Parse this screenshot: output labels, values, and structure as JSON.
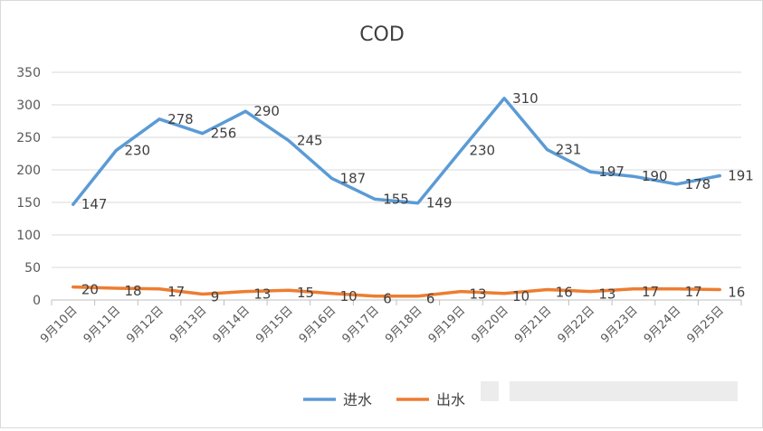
{
  "chart_data": {
    "type": "line",
    "title": "COD",
    "xlabel": "",
    "ylabel": "",
    "categories": [
      "9月10日",
      "9月11日",
      "9月12日",
      "9月13日",
      "9月14日",
      "9月15日",
      "9月16日",
      "9月17日",
      "9月18日",
      "9月19日",
      "9月20日",
      "9月21日",
      "9月22日",
      "9月23日",
      "9月24日",
      "9月25日"
    ],
    "series": [
      {
        "name": "进水",
        "color": "#5b9bd5",
        "values": [
          147,
          230,
          278,
          256,
          290,
          245,
          187,
          155,
          149,
          230,
          310,
          231,
          197,
          190,
          178,
          191
        ]
      },
      {
        "name": "出水",
        "color": "#ed7d31",
        "values": [
          20,
          18,
          17,
          9,
          13,
          15,
          10,
          6,
          6,
          13,
          10,
          16,
          13,
          17,
          17,
          16
        ]
      }
    ],
    "ylim": [
      0,
      350
    ],
    "yticks": [
      0,
      50,
      100,
      150,
      200,
      250,
      300,
      350
    ],
    "grid": true,
    "legend": "bottom",
    "data_labels": true
  }
}
